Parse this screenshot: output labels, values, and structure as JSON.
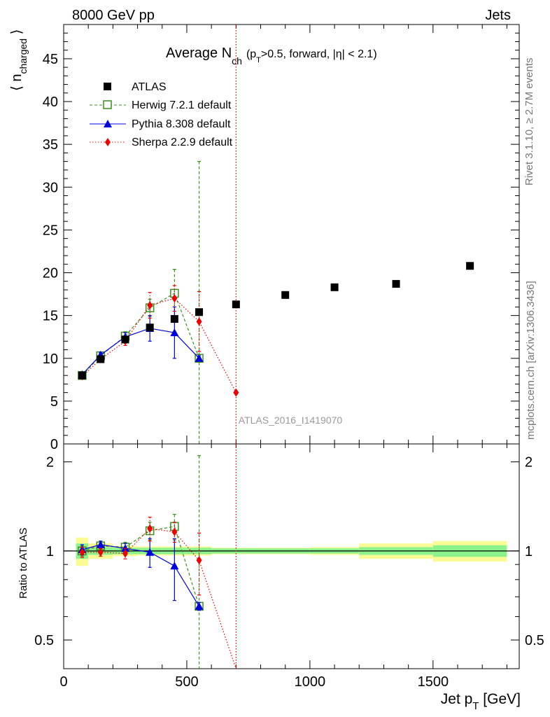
{
  "header": {
    "left": "8000 GeV pp",
    "right": "Jets",
    "analysis_tag": "ATLAS_2016_I1419070",
    "side_right_top": "Rivet 3.1.10, ≥ 2.7M events",
    "side_right_bottom": "mcplots.cern.ch [arXiv:1306.3436]"
  },
  "colors": {
    "atlas": "#000000",
    "herwig": "#3a8f1e",
    "pythia": "#0000dd",
    "sherpa": "#ee0000",
    "band_inner": "#8cf38c",
    "band_outer": "#fbfb96"
  },
  "chart_data": [
    {
      "type": "scatter",
      "title": "Average N_ch (p_T>0.5, forward, |η| < 2.1)",
      "title_parts": {
        "main": "Average N",
        "sub": "ch",
        "pre": "(p",
        "sub2": "T",
        "post": ">0.5, forward, |η| < 2.1)"
      },
      "xlabel": "Jet p_T [GeV]",
      "xlabel_parts": {
        "main": "Jet p",
        "sub": "T",
        "post": " [GeV]"
      },
      "ylabel": "⟨ n_charged ⟩",
      "ylabel_parts": {
        "left": "⟨ n",
        "sub": "charged",
        "right": " ⟩"
      },
      "xlim": [
        0,
        1850
      ],
      "ylim": [
        0,
        49
      ],
      "yticks": [
        0,
        5,
        10,
        15,
        20,
        25,
        30,
        35,
        40,
        45
      ],
      "legend_position": "top-left",
      "series": [
        {
          "name": "ATLAS",
          "key": "atlas",
          "marker": "square-filled",
          "x": [
            75,
            150,
            250,
            350,
            450,
            550,
            700,
            900,
            1100,
            1350,
            1650
          ],
          "y": [
            8.0,
            9.9,
            12.2,
            13.6,
            14.6,
            15.4,
            16.3,
            17.4,
            18.3,
            18.7,
            20.8
          ]
        },
        {
          "name": "Herwig 7.2.1 default",
          "key": "herwig",
          "marker": "square-open",
          "line": "dashed",
          "x": [
            75,
            150,
            250,
            350,
            450,
            550
          ],
          "y": [
            8.0,
            10.3,
            12.6,
            15.9,
            17.6,
            10.0
          ],
          "err_up": [
            0.3,
            0.3,
            0.5,
            1.0,
            2.8,
            23.0
          ],
          "err_down": [
            0.3,
            0.3,
            0.5,
            1.0,
            2.8,
            10.0
          ]
        },
        {
          "name": "Pythia 8.308 default",
          "key": "pythia",
          "marker": "triangle-filled",
          "line": "solid",
          "x": [
            75,
            150,
            250,
            350,
            450,
            550
          ],
          "y": [
            8.1,
            10.4,
            12.5,
            13.5,
            13.0,
            10.0
          ],
          "err_up": [
            0.3,
            0.3,
            0.5,
            1.5,
            3.0,
            0.3
          ],
          "err_down": [
            0.3,
            0.3,
            0.5,
            1.5,
            3.0,
            0.3
          ]
        },
        {
          "name": "Sherpa 2.2.9 default",
          "key": "sherpa",
          "marker": "diamond-filled",
          "line": "dotted",
          "x": [
            75,
            150,
            250,
            350,
            450,
            550,
            700
          ],
          "y": [
            7.9,
            9.9,
            12.0,
            16.2,
            17.0,
            14.3,
            6.0
          ],
          "err_up": [
            0.3,
            0.3,
            0.5,
            1.5,
            1.5,
            3.5,
            55.0
          ],
          "err_down": [
            0.3,
            0.3,
            0.5,
            1.5,
            1.5,
            3.5,
            6.0
          ]
        }
      ]
    },
    {
      "type": "scatter",
      "ylabel": "Ratio to ATLAS",
      "xlim": [
        0,
        1850
      ],
      "ylim": [
        0.4,
        2.3
      ],
      "yscale": "log",
      "yticks": [
        0.5,
        1,
        2
      ],
      "xticks": [
        0,
        500,
        1000,
        1500
      ],
      "reference": 1,
      "bands": {
        "x_edges": [
          50,
          100,
          200,
          300,
          400,
          500,
          600,
          800,
          1000,
          1200,
          1500,
          1800
        ],
        "inner": [
          0.06,
          0.03,
          0.025,
          0.025,
          0.025,
          0.025,
          0.02,
          0.02,
          0.02,
          0.03,
          0.045
        ],
        "outer": [
          0.11,
          0.06,
          0.04,
          0.035,
          0.035,
          0.035,
          0.025,
          0.025,
          0.03,
          0.06,
          0.08
        ]
      },
      "series": [
        {
          "name": "Herwig 7.2.1 default",
          "key": "herwig",
          "x": [
            75,
            150,
            250,
            350,
            450,
            550
          ],
          "y": [
            1.0,
            1.04,
            1.03,
            1.17,
            1.21,
            0.65
          ],
          "err_up": [
            0.04,
            0.03,
            0.04,
            0.08,
            0.12,
            1.45
          ],
          "err_down": [
            0.04,
            0.03,
            0.04,
            0.08,
            0.12,
            0.35
          ]
        },
        {
          "name": "Pythia 8.308 default",
          "key": "pythia",
          "x": [
            75,
            150,
            250,
            350,
            450,
            550
          ],
          "y": [
            1.01,
            1.05,
            1.02,
            0.99,
            0.89,
            0.65
          ],
          "err_up": [
            0.04,
            0.03,
            0.04,
            0.11,
            0.21,
            0.02
          ],
          "err_down": [
            0.04,
            0.03,
            0.04,
            0.11,
            0.21,
            0.02
          ]
        },
        {
          "name": "Sherpa 2.2.9 default",
          "key": "sherpa",
          "x": [
            75,
            150,
            250,
            350,
            450,
            550,
            700
          ],
          "y": [
            0.99,
            0.99,
            0.98,
            1.19,
            1.16,
            0.93,
            0.37
          ],
          "err_up": [
            0.04,
            0.03,
            0.04,
            0.11,
            0.09,
            0.22,
            2.0
          ],
          "err_down": [
            0.04,
            0.03,
            0.04,
            0.11,
            0.09,
            0.22,
            0.2
          ]
        }
      ]
    }
  ]
}
